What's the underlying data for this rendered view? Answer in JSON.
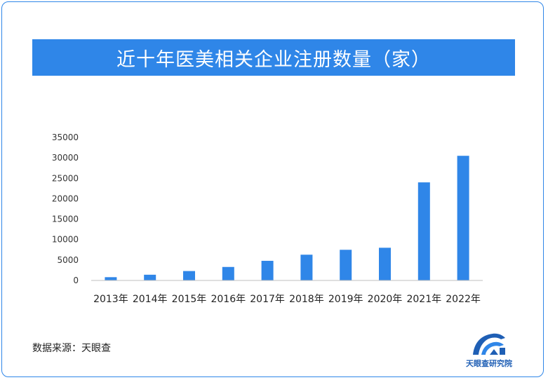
{
  "title": "近十年医美相关企业注册数量（家）",
  "source": "数据来源：天眼查",
  "brand": {
    "name": "天眼查研究院",
    "icon": "tianyancha-logo-icon"
  },
  "colors": {
    "accent": "#2f86e8",
    "bar": "#2f86e8"
  },
  "chart_data": {
    "type": "bar",
    "title": "近十年医美相关企业注册数量（家）",
    "categories": [
      "2013年",
      "2014年",
      "2015年",
      "2016年",
      "2017年",
      "2018年",
      "2019年",
      "2020年",
      "2021年",
      "2022年"
    ],
    "values": [
      800,
      1400,
      2300,
      3300,
      4800,
      6300,
      7500,
      8000,
      24000,
      30500
    ],
    "ylim": [
      0,
      35000
    ],
    "yticks": [
      "0",
      "5000",
      "10000",
      "15000",
      "20000",
      "25000",
      "30000",
      "35000"
    ],
    "xlabel": "",
    "ylabel": "",
    "grid": false,
    "legend": "none"
  }
}
